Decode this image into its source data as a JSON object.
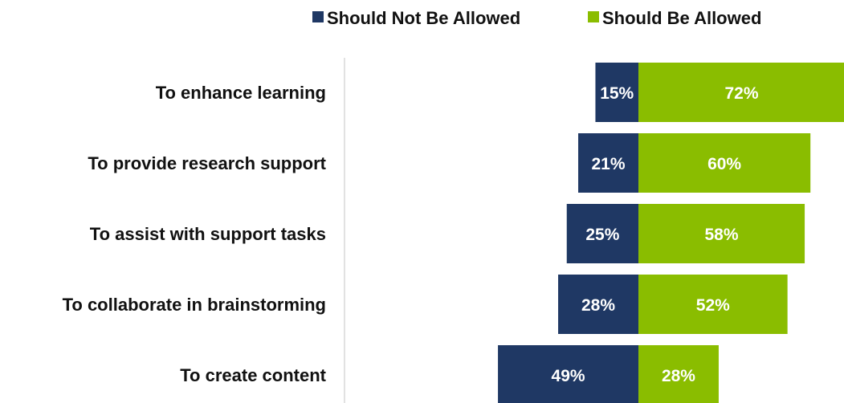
{
  "chart_data": {
    "type": "bar",
    "orientation": "horizontal-diverging",
    "categories": [
      "To enhance learning",
      "To provide research support",
      "To assist with support tasks",
      "To collaborate in brainstorming",
      "To create content"
    ],
    "series": [
      {
        "name": "Should Not Be Allowed",
        "values": [
          15,
          21,
          25,
          28,
          49
        ],
        "labels": [
          "15%",
          "21%",
          "25%",
          "28%",
          "49%"
        ],
        "color": "#1f3864",
        "direction": "left"
      },
      {
        "name": "Should Be Allowed",
        "values": [
          72,
          60,
          58,
          52,
          28
        ],
        "labels": [
          "72%",
          "60%",
          "58%",
          "52%",
          "28%"
        ],
        "color": "#8abd00",
        "direction": "right"
      }
    ],
    "unit": "%",
    "legend_position": "top-right",
    "grid": false
  }
}
